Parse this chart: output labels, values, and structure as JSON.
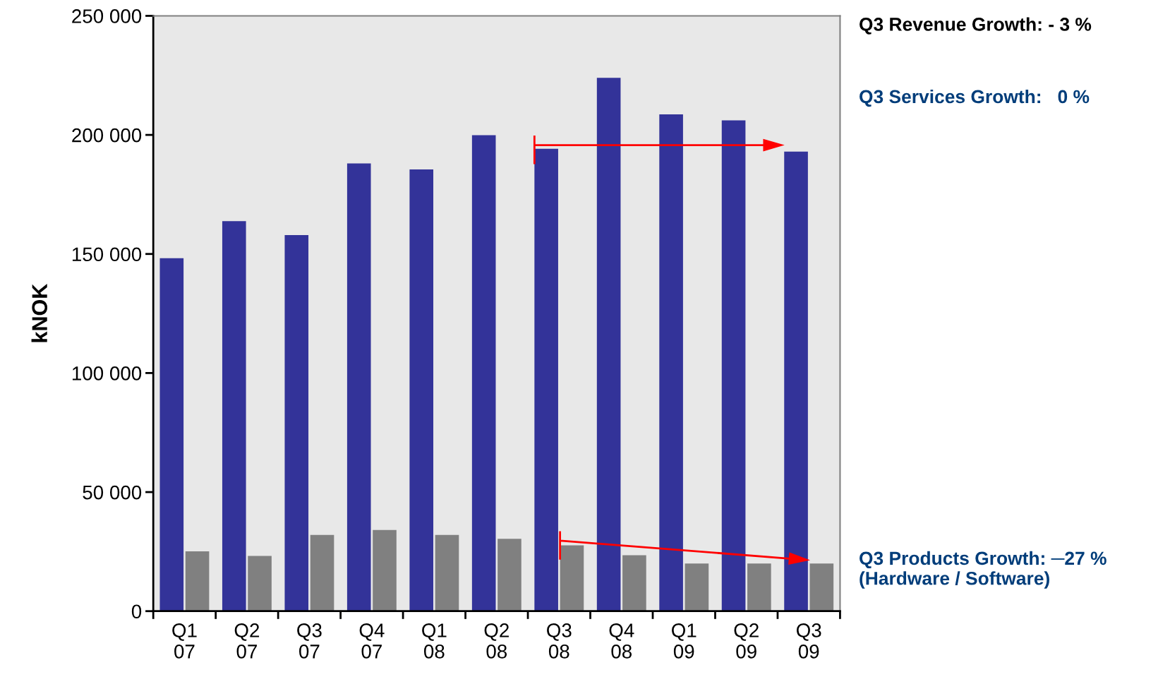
{
  "chart_data": {
    "type": "bar",
    "ylabel": "kNOK",
    "categories": [
      "Q1\n07",
      "Q2\n07",
      "Q3\n07",
      "Q4\n07",
      "Q1\n08",
      "Q2\n08",
      "Q3\n08",
      "Q4\n08",
      "Q1\n09",
      "Q2\n09",
      "Q3\n09"
    ],
    "series": [
      {
        "color": "#333399",
        "values": [
          148200,
          163800,
          157900,
          188000,
          185500,
          199900,
          194200,
          224000,
          208600,
          206100,
          193000
        ]
      },
      {
        "color": "#808080",
        "values": [
          25100,
          23200,
          32000,
          34100,
          32000,
          30400,
          27600,
          23500,
          20000,
          20000,
          20000
        ]
      }
    ],
    "ylim": [
      0,
      250000
    ],
    "yticks": [
      0,
      {
        "value": 50000,
        "label": "50 000"
      },
      {
        "value": 100000,
        "label": "100 000"
      },
      {
        "value": 150000,
        "label": "150 000"
      },
      {
        "value": 200000,
        "label": "200 000"
      },
      {
        "value": 250000,
        "label": "250 000"
      }
    ],
    "grid": false,
    "legend": false,
    "annotations": [
      "Q3 Revenue Growth: - 3 %",
      "Q3 Services Growth:   0 %",
      "Q3 Products Growth: ─27 %\n(Hardware / Software)"
    ]
  }
}
